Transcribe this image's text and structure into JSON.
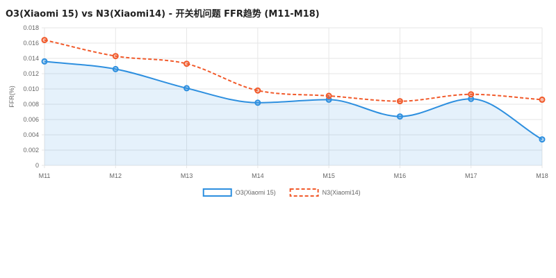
{
  "chart_data": {
    "type": "line",
    "title": "O3(Xiaomi 15) vs N3(Xiaomi14) - 开关机问题 FFR趋势 (M11-M18)",
    "xlabel": "",
    "ylabel": "FFR(%)",
    "categories": [
      "M11",
      "M12",
      "M13",
      "M14",
      "M15",
      "M16",
      "M17",
      "M18"
    ],
    "ylim": [
      0,
      0.018
    ],
    "yticks": [
      "0",
      "0.002",
      "0.004",
      "0.006",
      "0.008",
      "0.010",
      "0.012",
      "0.014",
      "0.016",
      "0.018"
    ],
    "grid": true,
    "legend": "bottom",
    "series": [
      {
        "name": "O3(Xiaomi 15)",
        "values": [
          0.0136,
          0.0126,
          0.0101,
          0.0082,
          0.0086,
          0.0064,
          0.0087,
          0.0034
        ],
        "color": "#2d8fdf",
        "dashed": false,
        "fill": "rgba(45,143,223,0.12)"
      },
      {
        "name": "N3(Xiaomi14)",
        "values": [
          0.0164,
          0.0143,
          0.0133,
          0.0098,
          0.0091,
          0.0084,
          0.0093,
          0.0086
        ],
        "color": "#f15a2b",
        "dashed": true,
        "fill": null
      }
    ]
  }
}
